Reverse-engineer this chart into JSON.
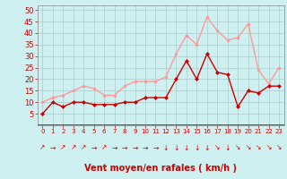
{
  "hours": [
    0,
    1,
    2,
    3,
    4,
    5,
    6,
    7,
    8,
    9,
    10,
    11,
    12,
    13,
    14,
    15,
    16,
    17,
    18,
    19,
    20,
    21,
    22,
    23
  ],
  "wind_avg": [
    5,
    10,
    8,
    10,
    10,
    9,
    9,
    9,
    10,
    10,
    12,
    12,
    12,
    20,
    28,
    20,
    31,
    23,
    22,
    8,
    15,
    14,
    17,
    17
  ],
  "wind_gust": [
    10,
    12,
    13,
    15,
    17,
    16,
    13,
    13,
    17,
    19,
    19,
    19,
    21,
    31,
    39,
    35,
    47,
    41,
    37,
    38,
    44,
    24,
    18,
    25
  ],
  "line_avg_color": "#cc0000",
  "line_gust_color": "#ff9999",
  "bg_color": "#cff0f0",
  "grid_color": "#aacccc",
  "tick_color": "#cc0000",
  "xlabel": "Vent moyen/en rafales ( km/h )",
  "ylim": [
    0,
    52
  ],
  "yticks": [
    5,
    10,
    15,
    20,
    25,
    30,
    35,
    40,
    45,
    50
  ],
  "arrow_symbols": [
    "↗",
    "→",
    "↗",
    "↗",
    "↗",
    "→",
    "↗",
    "→",
    "→",
    "→",
    "→",
    "→",
    "↓",
    "↓",
    "↓",
    "↓",
    "↓",
    "↘",
    "↓",
    "↘",
    "↘",
    "↘",
    "↘",
    "↘"
  ],
  "line_width": 1.0,
  "marker_size": 2.5
}
